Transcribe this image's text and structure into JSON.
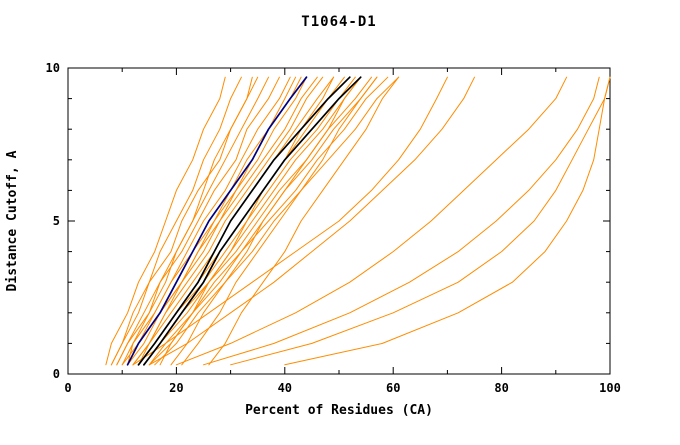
{
  "chart_data": {
    "type": "line",
    "title": "T1064-D1",
    "xlabel": "Percent of Residues (CA)",
    "ylabel": "Distance Cutoff, A",
    "xlim": [
      0,
      100
    ],
    "ylim": [
      0,
      10
    ],
    "xticks": [
      0,
      20,
      40,
      60,
      80,
      100
    ],
    "xminor_step": 10,
    "yticks": [
      0,
      5,
      10
    ],
    "yminor_step": 1,
    "grid": false,
    "legend": "none",
    "y_samples": [
      0.3,
      1,
      2,
      3,
      4,
      5,
      6,
      7,
      8,
      9,
      9.7
    ],
    "series": [
      {
        "name": "model-curves",
        "color": "#ff8c00",
        "width": 1,
        "curves": [
          [
            7,
            8,
            11,
            13,
            16,
            18,
            20,
            23,
            25,
            28,
            29
          ],
          [
            8,
            10,
            12,
            15,
            17,
            20,
            23,
            25,
            28,
            30,
            32
          ],
          [
            8,
            10,
            13,
            15,
            19,
            21,
            24,
            28,
            30,
            33,
            35
          ],
          [
            9,
            11,
            14,
            17,
            20,
            23,
            26,
            29,
            32,
            35,
            37
          ],
          [
            9,
            11,
            15,
            17,
            21,
            24,
            27,
            31,
            33,
            37,
            39
          ],
          [
            10,
            12,
            16,
            19,
            22,
            25,
            29,
            32,
            35,
            39,
            41
          ],
          [
            10,
            13,
            16,
            19,
            23,
            27,
            30,
            33,
            37,
            41,
            43
          ],
          [
            11,
            13,
            17,
            21,
            24,
            27,
            31,
            35,
            38,
            42,
            44
          ],
          [
            11,
            14,
            17,
            21,
            25,
            28,
            32,
            36,
            40,
            43,
            46
          ],
          [
            12,
            15,
            18,
            22,
            26,
            29,
            33,
            37,
            41,
            44,
            47
          ],
          [
            12,
            15,
            19,
            23,
            27,
            30,
            34,
            38,
            42,
            46,
            49
          ],
          [
            13,
            16,
            20,
            24,
            28,
            32,
            36,
            40,
            44,
            48,
            51
          ],
          [
            13,
            16,
            20,
            25,
            29,
            33,
            37,
            41,
            46,
            50,
            53
          ],
          [
            14,
            17,
            21,
            26,
            30,
            34,
            38,
            42,
            47,
            51,
            54
          ],
          [
            14,
            17,
            22,
            26,
            31,
            35,
            39,
            44,
            48,
            53,
            56
          ],
          [
            15,
            18,
            23,
            27,
            32,
            36,
            40,
            45,
            49,
            54,
            57
          ],
          [
            15,
            19,
            23,
            28,
            32,
            37,
            42,
            46,
            51,
            55,
            59
          ],
          [
            16,
            20,
            24,
            29,
            34,
            38,
            43,
            48,
            53,
            57,
            61
          ],
          [
            11,
            12,
            15,
            18,
            20,
            23,
            25,
            27,
            30,
            33,
            34
          ],
          [
            13,
            15,
            18,
            21,
            24,
            28,
            31,
            34,
            37,
            40,
            42
          ],
          [
            17,
            19,
            23,
            26,
            30,
            33,
            36,
            40,
            43,
            47,
            49
          ],
          [
            19,
            22,
            25,
            29,
            33,
            36,
            40,
            44,
            48,
            51,
            54
          ],
          [
            21,
            24,
            28,
            31,
            35,
            39,
            43,
            47,
            50,
            54,
            57
          ],
          [
            26,
            29,
            32,
            36,
            40,
            43,
            47,
            51,
            55,
            58,
            61
          ],
          [
            12,
            18,
            26,
            34,
            42,
            50,
            56,
            61,
            65,
            68,
            70
          ],
          [
            15,
            22,
            30,
            38,
            45,
            52,
            58,
            64,
            69,
            73,
            75
          ],
          [
            20,
            30,
            42,
            52,
            60,
            67,
            73,
            79,
            85,
            90,
            92
          ],
          [
            25,
            38,
            52,
            63,
            72,
            79,
            85,
            90,
            94,
            97,
            98
          ],
          [
            30,
            45,
            60,
            72,
            80,
            86,
            90,
            93,
            96,
            99,
            100
          ],
          [
            40,
            58,
            72,
            82,
            88,
            92,
            95,
            97,
            98,
            99,
            100
          ]
        ]
      },
      {
        "name": "highlight-navy-curve",
        "color": "#000080",
        "width": 1.7,
        "curves": [
          [
            11,
            13,
            17,
            20,
            23,
            26,
            30,
            34,
            37,
            41,
            44
          ]
        ]
      },
      {
        "name": "highlight-black-curves",
        "color": "#000000",
        "width": 1.7,
        "curves": [
          [
            13,
            16,
            20,
            24,
            27,
            30,
            34,
            38,
            43,
            48,
            52
          ],
          [
            14,
            17,
            21,
            25,
            28,
            32,
            36,
            40,
            45,
            50,
            54
          ]
        ]
      }
    ]
  },
  "colors": {
    "background": "#ffffff",
    "axis": "#000000",
    "model_orange": "#ff8c00",
    "highlight_navy": "#000080",
    "highlight_black": "#000000"
  }
}
